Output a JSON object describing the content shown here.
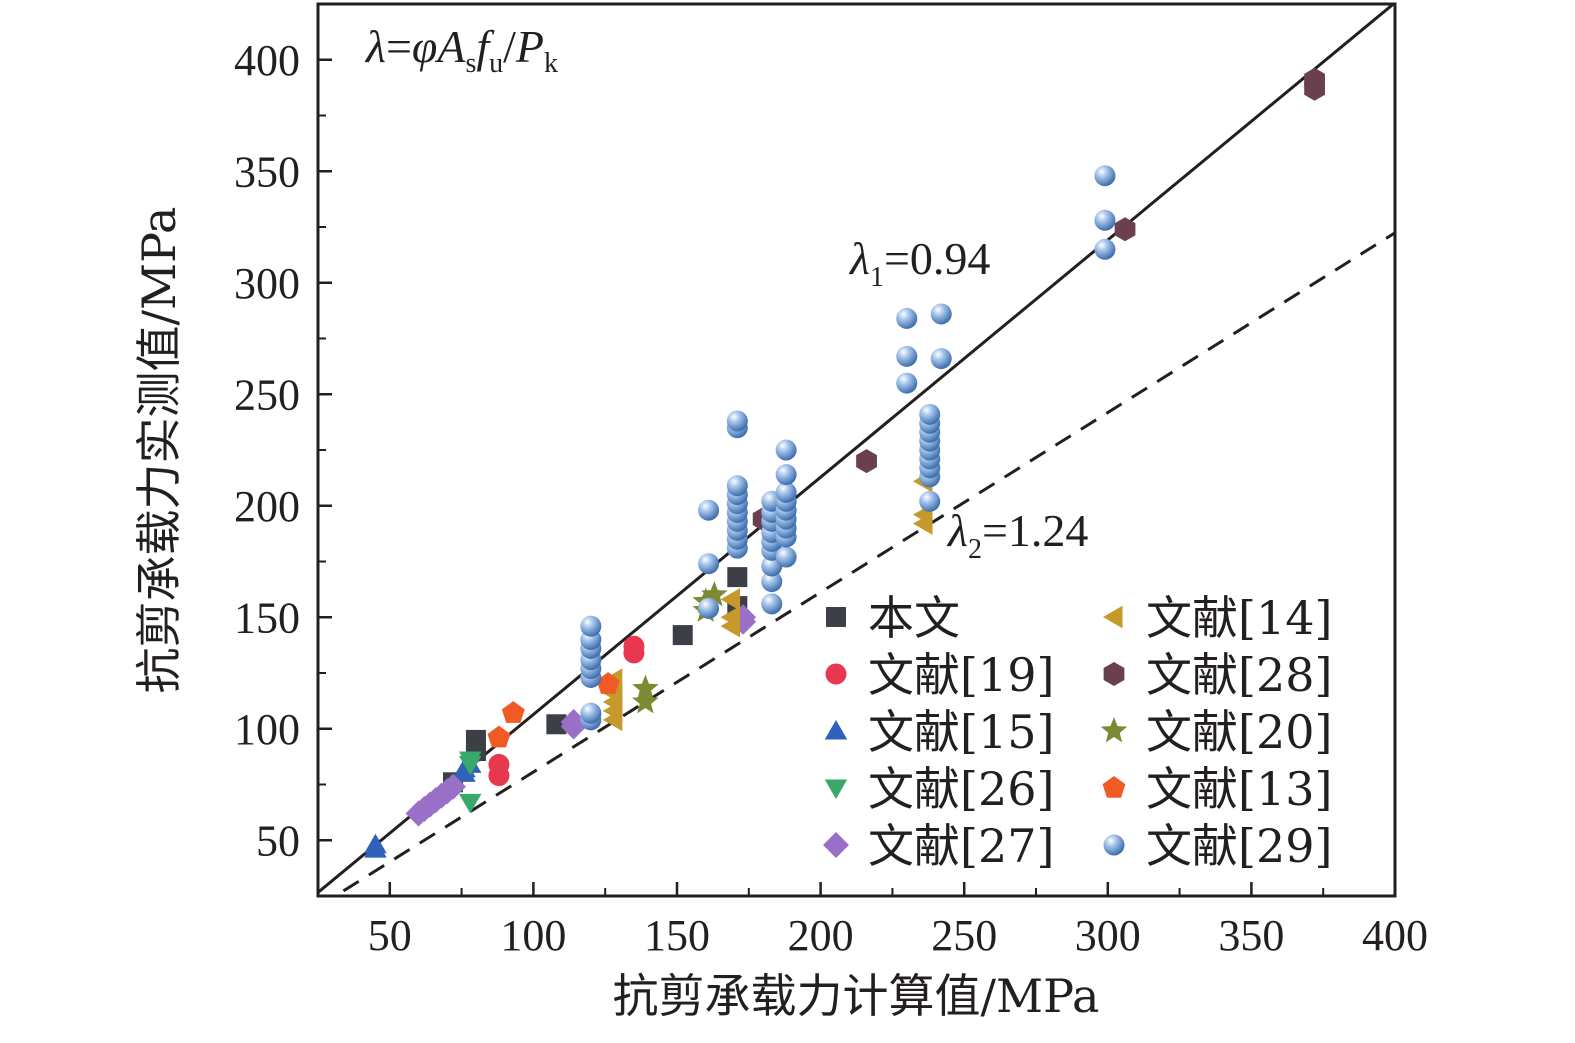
{
  "chart_data": {
    "type": "scatter",
    "xlabel": "抗剪承载力计算值/MPa",
    "ylabel": "抗剪承载力实测值/MPa",
    "xlim": [
      25,
      400
    ],
    "ylim": [
      25,
      425
    ],
    "xticks": [
      50,
      100,
      150,
      200,
      250,
      300,
      350,
      400
    ],
    "yticks": [
      50,
      100,
      150,
      200,
      250,
      300,
      350,
      400
    ],
    "grid": false,
    "legend_position": "lower-right",
    "formula": {
      "lambda": "λ",
      "eq": "=",
      "phi": "φ",
      "A": "A",
      "A_sub": "s",
      "f": "f",
      "f_sub": "u",
      "slash": "/",
      "P": "P",
      "P_sub": "k"
    },
    "fit_lines": [
      {
        "label_symbol": "λ",
        "label_sub": "1",
        "label_value": "=0.94",
        "slope": 1.064,
        "style": "solid"
      },
      {
        "label_symbol": "λ",
        "label_sub": "2",
        "label_value": "=1.24",
        "slope": 0.806,
        "style": "dashed"
      }
    ],
    "series": [
      {
        "name": "本文",
        "marker": "square",
        "color": "#3d3f46",
        "points": [
          [
            72,
            76
          ],
          [
            80,
            95
          ],
          [
            80,
            90
          ],
          [
            108,
            102
          ],
          [
            152,
            142
          ],
          [
            171,
            168
          ],
          [
            171,
            155
          ]
        ]
      },
      {
        "name": "文献[19]",
        "marker": "circle",
        "color": "#e8384f",
        "points": [
          [
            88,
            84
          ],
          [
            88,
            79
          ],
          [
            135,
            137
          ],
          [
            135,
            134
          ]
        ]
      },
      {
        "name": "文献[15]",
        "marker": "triangle-up",
        "color": "#2f62b8",
        "points": [
          [
            45,
            48
          ],
          [
            45,
            46
          ],
          [
            76,
            80
          ],
          [
            76,
            82
          ],
          [
            78,
            84
          ]
        ]
      },
      {
        "name": "文献[26]",
        "marker": "triangle-down",
        "color": "#3aa86b",
        "points": [
          [
            78,
            67
          ],
          [
            78,
            84
          ],
          [
            78,
            86
          ]
        ]
      },
      {
        "name": "文献[27]",
        "marker": "diamond",
        "color": "#9a6fc7",
        "points": [
          [
            60,
            62
          ],
          [
            62,
            64
          ],
          [
            64,
            66
          ],
          [
            66,
            68
          ],
          [
            68,
            70
          ],
          [
            70,
            72
          ],
          [
            72,
            74
          ],
          [
            114,
            101
          ],
          [
            114,
            103
          ],
          [
            173,
            148
          ],
          [
            173,
            150
          ]
        ]
      },
      {
        "name": "文献[14]",
        "marker": "triangle-left",
        "color": "#c59a2b",
        "points": [
          [
            128,
            104
          ],
          [
            128,
            108
          ],
          [
            128,
            112
          ],
          [
            128,
            116
          ],
          [
            128,
            122
          ],
          [
            169,
            146
          ],
          [
            169,
            150
          ],
          [
            169,
            158
          ],
          [
            236,
            192
          ],
          [
            236,
            196
          ],
          [
            236,
            211
          ]
        ]
      },
      {
        "name": "文献[28]",
        "marker": "hexagon",
        "color": "#6a3f4e",
        "points": [
          [
            180,
            194
          ],
          [
            216,
            220
          ],
          [
            306,
            324
          ],
          [
            372,
            387
          ],
          [
            372,
            391
          ]
        ]
      },
      {
        "name": "文献[20]",
        "marker": "star",
        "color": "#7e8a33",
        "points": [
          [
            139,
            112
          ],
          [
            139,
            118
          ],
          [
            160,
            153
          ],
          [
            160,
            157
          ],
          [
            163,
            160
          ]
        ]
      },
      {
        "name": "文献[13]",
        "marker": "pentagon",
        "color": "#f05a24",
        "points": [
          [
            88,
            96
          ],
          [
            93,
            107
          ],
          [
            126,
            120
          ]
        ]
      },
      {
        "name": "文献[29]",
        "marker": "sphere",
        "color": "#6f9fd6",
        "points": [
          [
            120,
            104
          ],
          [
            120,
            107
          ],
          [
            120,
            123
          ],
          [
            120,
            127
          ],
          [
            120,
            131
          ],
          [
            120,
            136
          ],
          [
            120,
            140
          ],
          [
            120,
            146
          ],
          [
            161,
            174
          ],
          [
            161,
            198
          ],
          [
            161,
            154
          ],
          [
            171,
            181
          ],
          [
            171,
            185
          ],
          [
            171,
            189
          ],
          [
            171,
            193
          ],
          [
            171,
            197
          ],
          [
            171,
            201
          ],
          [
            171,
            205
          ],
          [
            171,
            209
          ],
          [
            171,
            235
          ],
          [
            171,
            238
          ],
          [
            183,
            156
          ],
          [
            183,
            166
          ],
          [
            183,
            173
          ],
          [
            183,
            180
          ],
          [
            183,
            184
          ],
          [
            183,
            188
          ],
          [
            183,
            193
          ],
          [
            183,
            197
          ],
          [
            183,
            202
          ],
          [
            188,
            177
          ],
          [
            188,
            186
          ],
          [
            188,
            190
          ],
          [
            188,
            194
          ],
          [
            188,
            198
          ],
          [
            188,
            202
          ],
          [
            188,
            206
          ],
          [
            188,
            214
          ],
          [
            188,
            225
          ],
          [
            230,
            255
          ],
          [
            230,
            267
          ],
          [
            230,
            284
          ],
          [
            238,
            202
          ],
          [
            238,
            213
          ],
          [
            238,
            217
          ],
          [
            238,
            221
          ],
          [
            238,
            225
          ],
          [
            238,
            229
          ],
          [
            238,
            233
          ],
          [
            238,
            237
          ],
          [
            238,
            241
          ],
          [
            242,
            266
          ],
          [
            242,
            286
          ],
          [
            299,
            315
          ],
          [
            299,
            328
          ],
          [
            299,
            348
          ]
        ]
      }
    ]
  }
}
